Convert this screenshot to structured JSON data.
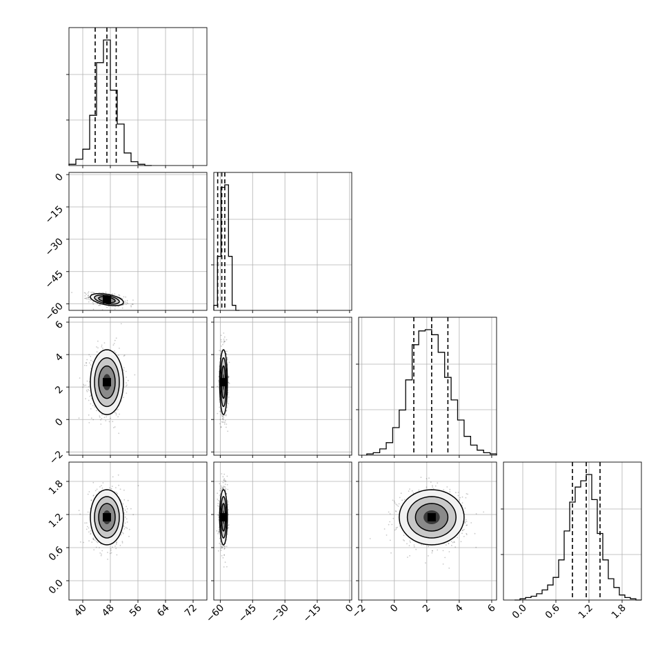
{
  "chart_data": {
    "type": "corner",
    "grid": true,
    "parameters": [
      {
        "range": [
          36,
          76
        ],
        "ticks": [
          40,
          48,
          56,
          64,
          72
        ],
        "tick_labels": [
          "40",
          "48",
          "56",
          "64",
          "72"
        ]
      },
      {
        "range": [
          -63,
          1
        ],
        "ticks": [
          -60,
          -45,
          -30,
          -15,
          0
        ],
        "tick_labels": [
          "−60",
          "−45",
          "−30",
          "−15",
          "0"
        ]
      },
      {
        "range": [
          -2.2,
          6.3
        ],
        "ticks": [
          -2,
          0,
          2,
          4,
          6
        ],
        "tick_labels": [
          "−2",
          "0",
          "2",
          "4",
          "6"
        ]
      },
      {
        "range": [
          -0.35,
          2.15
        ],
        "ticks": [
          0.0,
          0.6,
          1.2,
          1.8
        ],
        "tick_labels": [
          "0.0",
          "0.6",
          "1.2",
          "1.8"
        ]
      }
    ],
    "marginals": [
      {
        "param": 0,
        "bin_edges": [
          36,
          38,
          40,
          42,
          44,
          46,
          48,
          50,
          52,
          54,
          56,
          58,
          60
        ],
        "counts": [
          0.01,
          0.05,
          0.13,
          0.4,
          0.82,
          1.0,
          0.6,
          0.33,
          0.1,
          0.03,
          0.01,
          0.0
        ],
        "quantiles": [
          43.6,
          47.0,
          49.7
        ]
      },
      {
        "param": 1,
        "bin_edges": [
          -63,
          -61.3,
          -59.6,
          -57.9,
          -56.2,
          -54.5,
          -52.8,
          -51.1
        ],
        "counts": [
          0.04,
          0.43,
          0.98,
          1.0,
          0.43,
          0.04,
          0.0
        ],
        "quantiles": [
          -61.2,
          -59.3,
          -57.9
        ]
      },
      {
        "param": 2,
        "bin_edges": [
          -1.7,
          -1.3,
          -0.9,
          -0.5,
          -0.1,
          0.3,
          0.7,
          1.1,
          1.5,
          1.9,
          2.3,
          2.7,
          3.1,
          3.5,
          3.9,
          4.3,
          4.7,
          5.1,
          5.5,
          5.9,
          6.3
        ],
        "counts": [
          0.01,
          0.02,
          0.05,
          0.1,
          0.22,
          0.36,
          0.6,
          0.88,
          0.99,
          1.0,
          0.96,
          0.82,
          0.62,
          0.44,
          0.28,
          0.15,
          0.08,
          0.04,
          0.02,
          0.01
        ],
        "quantiles": [
          1.2,
          2.3,
          3.3
        ]
      },
      {
        "param": 3,
        "bin_edges": [
          -0.15,
          -0.05,
          0.05,
          0.15,
          0.25,
          0.35,
          0.45,
          0.55,
          0.65,
          0.75,
          0.85,
          0.95,
          1.05,
          1.15,
          1.25,
          1.35,
          1.45,
          1.55,
          1.65,
          1.75,
          1.85,
          1.95,
          2.05,
          2.15
        ],
        "counts": [
          0.0,
          0.01,
          0.02,
          0.03,
          0.05,
          0.08,
          0.12,
          0.18,
          0.32,
          0.55,
          0.78,
          0.9,
          0.95,
          1.0,
          0.8,
          0.53,
          0.32,
          0.17,
          0.1,
          0.04,
          0.02,
          0.01,
          0.0
        ],
        "quantiles": [
          0.9,
          1.15,
          1.4
        ]
      }
    ],
    "joints": [
      {
        "x": 0,
        "y": 1,
        "mean": [
          47,
          -58
        ],
        "sigma": [
          2.4,
          1.4
        ],
        "rho": -0.45
      },
      {
        "x": 0,
        "y": 2,
        "mean": [
          47,
          2.3
        ],
        "sigma": [
          2.4,
          1.0
        ],
        "rho": 0.0
      },
      {
        "x": 1,
        "y": 2,
        "mean": [
          -58.5,
          2.3
        ],
        "sigma": [
          0.9,
          1.0
        ],
        "rho": 0.0
      },
      {
        "x": 0,
        "y": 3,
        "mean": [
          47,
          1.15
        ],
        "sigma": [
          2.4,
          0.25
        ],
        "rho": 0.0
      },
      {
        "x": 1,
        "y": 3,
        "mean": [
          -58.5,
          1.15
        ],
        "sigma": [
          0.9,
          0.25
        ],
        "rho": 0.0
      },
      {
        "x": 2,
        "y": 3,
        "mean": [
          2.3,
          1.15
        ],
        "sigma": [
          1.0,
          0.25
        ],
        "rho": 0.0
      }
    ],
    "contour_levels_sigma": [
      0.5,
      1.0,
      1.5,
      2.0
    ]
  }
}
